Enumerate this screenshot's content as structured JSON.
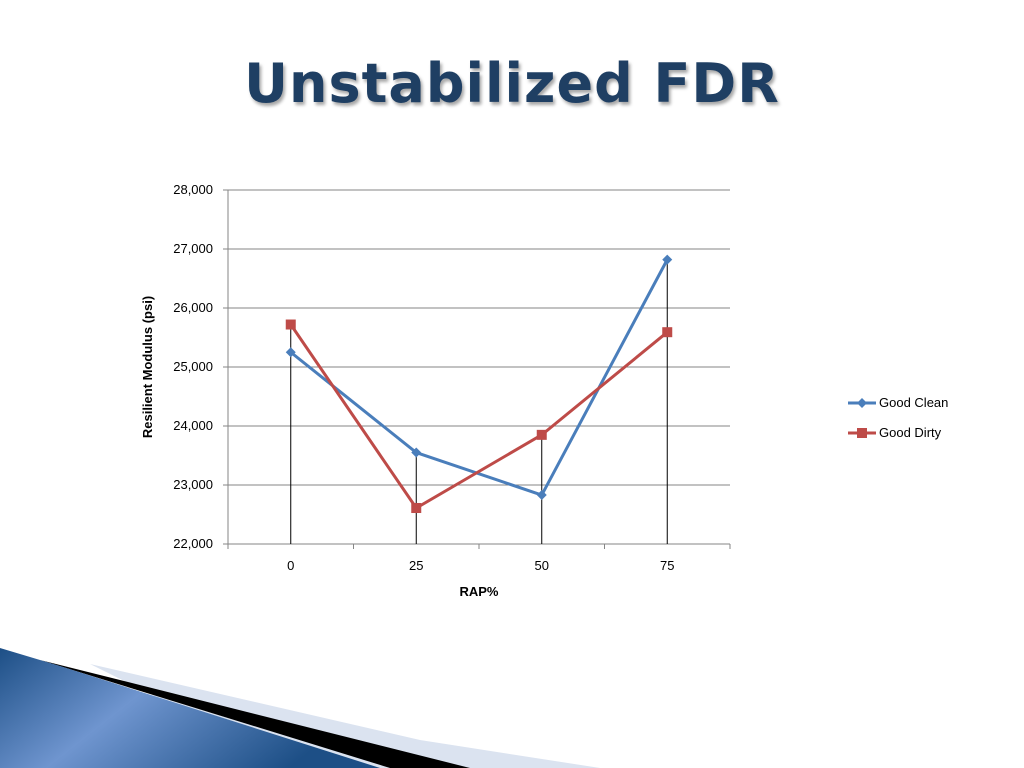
{
  "slide": {
    "title": "Unstabilized FDR"
  },
  "chart_data": {
    "type": "line",
    "categories": [
      "0",
      "25",
      "50",
      "75"
    ],
    "series": [
      {
        "name": "Good Clean",
        "values": [
          25250,
          23550,
          22830,
          26820
        ],
        "color": "#4a7ebb",
        "marker": "diamond"
      },
      {
        "name": "Good Dirty",
        "values": [
          25720,
          22610,
          23850,
          25590
        ],
        "color": "#be4b48",
        "marker": "square"
      }
    ],
    "xlabel": "RAP%",
    "ylabel": "Resilient Modulus (psi)",
    "ylim": [
      22000,
      28000
    ],
    "yticks": [
      22000,
      23000,
      24000,
      25000,
      26000,
      27000,
      28000
    ],
    "ytick_labels": [
      "22,000",
      "23,000",
      "24,000",
      "25,000",
      "26,000",
      "27,000",
      "28,000"
    ],
    "grid": true,
    "drop_lines": true,
    "legend_position": "right"
  }
}
